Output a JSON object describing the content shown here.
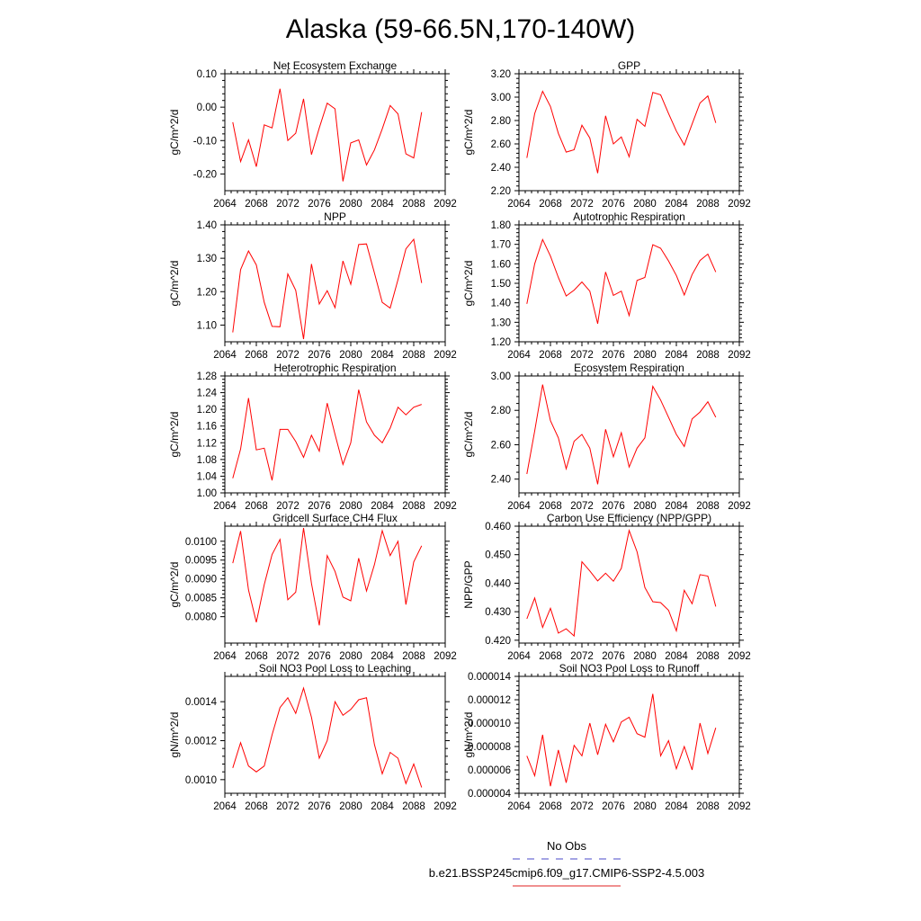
{
  "page": {
    "title": "Alaska (59-66.5N,170-140W)"
  },
  "legend": {
    "items": [
      {
        "label": "No Obs",
        "color": "#4a4ac8",
        "dash": true
      },
      {
        "label": "b.e21.BSSP245cmip6.f09_g17.CMIP6-SSP2-4.5.003",
        "color": "#e02020",
        "dash": false
      }
    ]
  },
  "colors": {
    "series": "#ff0000",
    "axis": "#000000"
  },
  "chart_data": [
    {
      "type": "line",
      "title": "Net Ecosystem Exchange",
      "ylabel": "gC/m^2/d",
      "xlim": [
        2064,
        2092
      ],
      "xticks": [
        2064,
        2068,
        2072,
        2076,
        2080,
        2084,
        2088,
        2092
      ],
      "ylim": [
        -0.25,
        0.1
      ],
      "yticks": [
        0.1,
        0.0,
        -0.1,
        -0.2
      ],
      "yticklabels": [
        "0.10",
        "0.00",
        "-0.10",
        "-0.20"
      ],
      "x": [
        2065,
        2066,
        2067,
        2068,
        2069,
        2070,
        2071,
        2072,
        2073,
        2074,
        2075,
        2076,
        2077,
        2078,
        2079,
        2080,
        2081,
        2082,
        2083,
        2084,
        2085,
        2086,
        2087,
        2088,
        2089
      ],
      "values": [
        -0.045,
        -0.163,
        -0.098,
        -0.178,
        -0.053,
        -0.062,
        0.055,
        -0.1,
        -0.078,
        0.025,
        -0.142,
        -0.062,
        0.012,
        -0.005,
        -0.222,
        -0.107,
        -0.098,
        -0.173,
        -0.128,
        -0.065,
        0.005,
        -0.02,
        -0.14,
        -0.152,
        -0.015
      ]
    },
    {
      "type": "line",
      "title": "GPP",
      "ylabel": "gC/m^2/d",
      "xlim": [
        2064,
        2092
      ],
      "xticks": [
        2064,
        2068,
        2072,
        2076,
        2080,
        2084,
        2088,
        2092
      ],
      "ylim": [
        2.2,
        3.2
      ],
      "yticks": [
        3.2,
        3.0,
        2.8,
        2.6,
        2.4,
        2.2
      ],
      "yticklabels": [
        "3.20",
        "3.00",
        "2.80",
        "2.60",
        "2.40",
        "2.20"
      ],
      "x": [
        2065,
        2066,
        2067,
        2068,
        2069,
        2070,
        2071,
        2072,
        2073,
        2074,
        2075,
        2076,
        2077,
        2078,
        2079,
        2080,
        2081,
        2082,
        2083,
        2084,
        2085,
        2086,
        2087,
        2088,
        2089
      ],
      "values": [
        2.48,
        2.86,
        3.05,
        2.92,
        2.69,
        2.53,
        2.55,
        2.76,
        2.65,
        2.35,
        2.84,
        2.6,
        2.66,
        2.49,
        2.81,
        2.75,
        3.04,
        3.02,
        2.86,
        2.71,
        2.59,
        2.77,
        2.95,
        3.01,
        2.78
      ]
    },
    {
      "type": "line",
      "title": "NPP",
      "ylabel": "gC/m^2/d",
      "xlim": [
        2064,
        2092
      ],
      "xticks": [
        2064,
        2068,
        2072,
        2076,
        2080,
        2084,
        2088,
        2092
      ],
      "ylim": [
        1.05,
        1.4
      ],
      "yticks": [
        1.4,
        1.3,
        1.2,
        1.1
      ],
      "yticklabels": [
        "1.40",
        "1.30",
        "1.20",
        "1.10"
      ],
      "x": [
        2065,
        2066,
        2067,
        2068,
        2069,
        2070,
        2071,
        2072,
        2073,
        2074,
        2075,
        2076,
        2077,
        2078,
        2079,
        2080,
        2081,
        2082,
        2083,
        2084,
        2085,
        2086,
        2087,
        2088,
        2089
      ],
      "values": [
        1.078,
        1.266,
        1.322,
        1.28,
        1.168,
        1.096,
        1.095,
        1.253,
        1.204,
        1.058,
        1.283,
        1.163,
        1.203,
        1.152,
        1.292,
        1.222,
        1.341,
        1.343,
        1.256,
        1.168,
        1.151,
        1.236,
        1.328,
        1.357,
        1.226
      ]
    },
    {
      "type": "line",
      "title": "Autotrophic Respiration",
      "ylabel": "gC/m^2/d",
      "xlim": [
        2064,
        2092
      ],
      "xticks": [
        2064,
        2068,
        2072,
        2076,
        2080,
        2084,
        2088,
        2092
      ],
      "ylim": [
        1.2,
        1.8
      ],
      "yticks": [
        1.8,
        1.7,
        1.6,
        1.5,
        1.4,
        1.3,
        1.2
      ],
      "yticklabels": [
        "1.80",
        "1.70",
        "1.60",
        "1.50",
        "1.40",
        "1.30",
        "1.20"
      ],
      "x": [
        2065,
        2066,
        2067,
        2068,
        2069,
        2070,
        2071,
        2072,
        2073,
        2074,
        2075,
        2076,
        2077,
        2078,
        2079,
        2080,
        2081,
        2082,
        2083,
        2084,
        2085,
        2086,
        2087,
        2088,
        2089
      ],
      "values": [
        1.395,
        1.6,
        1.725,
        1.64,
        1.53,
        1.435,
        1.465,
        1.507,
        1.46,
        1.293,
        1.558,
        1.438,
        1.46,
        1.335,
        1.515,
        1.53,
        1.698,
        1.68,
        1.615,
        1.54,
        1.44,
        1.545,
        1.617,
        1.65,
        1.558
      ]
    },
    {
      "type": "line",
      "title": "Heterotrophic Respiration",
      "ylabel": "gC/m^2/d",
      "xlim": [
        2064,
        2092
      ],
      "xticks": [
        2064,
        2068,
        2072,
        2076,
        2080,
        2084,
        2088,
        2092
      ],
      "ylim": [
        1.0,
        1.28
      ],
      "yticks": [
        1.28,
        1.24,
        1.2,
        1.16,
        1.12,
        1.08,
        1.04,
        1.0
      ],
      "yticklabels": [
        "1.28",
        "1.24",
        "1.20",
        "1.16",
        "1.12",
        "1.08",
        "1.04",
        "1.00"
      ],
      "x": [
        2065,
        2066,
        2067,
        2068,
        2069,
        2070,
        2071,
        2072,
        2073,
        2074,
        2075,
        2076,
        2077,
        2078,
        2079,
        2080,
        2081,
        2082,
        2083,
        2084,
        2085,
        2086,
        2087,
        2088,
        2089
      ],
      "values": [
        1.035,
        1.105,
        1.227,
        1.103,
        1.107,
        1.03,
        1.152,
        1.152,
        1.123,
        1.085,
        1.138,
        1.1,
        1.215,
        1.14,
        1.068,
        1.12,
        1.247,
        1.17,
        1.138,
        1.12,
        1.155,
        1.205,
        1.187,
        1.205,
        1.212
      ]
    },
    {
      "type": "line",
      "title": "Ecosystem Respiration",
      "ylabel": "gC/m^2/d",
      "xlim": [
        2064,
        2092
      ],
      "xticks": [
        2064,
        2068,
        2072,
        2076,
        2080,
        2084,
        2088,
        2092
      ],
      "ylim": [
        2.32,
        3.0
      ],
      "yticks": [
        3.0,
        2.8,
        2.6,
        2.4
      ],
      "yticklabels": [
        "3.00",
        "2.80",
        "2.60",
        "2.40"
      ],
      "x": [
        2065,
        2066,
        2067,
        2068,
        2069,
        2070,
        2071,
        2072,
        2073,
        2074,
        2075,
        2076,
        2077,
        2078,
        2079,
        2080,
        2081,
        2082,
        2083,
        2084,
        2085,
        2086,
        2087,
        2088,
        2089
      ],
      "values": [
        2.43,
        2.68,
        2.95,
        2.74,
        2.64,
        2.46,
        2.62,
        2.66,
        2.58,
        2.37,
        2.69,
        2.53,
        2.67,
        2.47,
        2.58,
        2.64,
        2.94,
        2.86,
        2.76,
        2.66,
        2.59,
        2.75,
        2.79,
        2.85,
        2.76
      ]
    },
    {
      "type": "line",
      "title": "Gridcell Surface CH4 Flux",
      "ylabel": "gC/m^2/d",
      "xlim": [
        2064,
        2092
      ],
      "xticks": [
        2064,
        2068,
        2072,
        2076,
        2080,
        2084,
        2088,
        2092
      ],
      "ylim": [
        0.0073,
        0.0104
      ],
      "yticks": [
        0.01,
        0.0095,
        0.009,
        0.0085,
        0.008
      ],
      "yticklabels": [
        "0.0100",
        "0.0095",
        "0.0090",
        "0.0085",
        "0.0080"
      ],
      "x": [
        2065,
        2066,
        2067,
        2068,
        2069,
        2070,
        2071,
        2072,
        2073,
        2074,
        2075,
        2076,
        2077,
        2078,
        2079,
        2080,
        2081,
        2082,
        2083,
        2084,
        2085,
        2086,
        2087,
        2088,
        2089
      ],
      "values": [
        0.00942,
        0.01027,
        0.00871,
        0.00785,
        0.00885,
        0.00965,
        0.01005,
        0.00845,
        0.00865,
        0.01035,
        0.00888,
        0.00777,
        0.00962,
        0.0092,
        0.00852,
        0.00842,
        0.00955,
        0.00868,
        0.00938,
        0.01028,
        0.00962,
        0.01,
        0.00832,
        0.00945,
        0.00988
      ]
    },
    {
      "type": "line",
      "title": "Carbon Use Efficiency (NPP/GPP)",
      "ylabel": "NPP/GPP",
      "xlim": [
        2064,
        2092
      ],
      "xticks": [
        2064,
        2068,
        2072,
        2076,
        2080,
        2084,
        2088,
        2092
      ],
      "ylim": [
        0.419,
        0.46
      ],
      "yticks": [
        0.46,
        0.45,
        0.44,
        0.43,
        0.42
      ],
      "yticklabels": [
        "0.460",
        "0.450",
        "0.440",
        "0.430",
        "0.420"
      ],
      "x": [
        2065,
        2066,
        2067,
        2068,
        2069,
        2070,
        2071,
        2072,
        2073,
        2074,
        2075,
        2076,
        2077,
        2078,
        2079,
        2080,
        2081,
        2082,
        2083,
        2084,
        2085,
        2086,
        2087,
        2088,
        2089
      ],
      "values": [
        0.4275,
        0.4348,
        0.4245,
        0.4312,
        0.4225,
        0.424,
        0.4215,
        0.4475,
        0.4443,
        0.4408,
        0.4435,
        0.4407,
        0.4452,
        0.4585,
        0.451,
        0.4385,
        0.4335,
        0.4332,
        0.4305,
        0.4233,
        0.4375,
        0.4328,
        0.443,
        0.4425,
        0.4318
      ]
    },
    {
      "type": "line",
      "title": "Soil NO3 Pool Loss to Leaching",
      "ylabel": "gN/m^2/d",
      "xlim": [
        2064,
        2092
      ],
      "xticks": [
        2064,
        2068,
        2072,
        2076,
        2080,
        2084,
        2088,
        2092
      ],
      "ylim": [
        0.00093,
        0.00153
      ],
      "yticks": [
        0.0014,
        0.0012,
        0.001
      ],
      "yticklabels": [
        "0.0014",
        "0.0012",
        "0.0010"
      ],
      "x": [
        2065,
        2066,
        2067,
        2068,
        2069,
        2070,
        2071,
        2072,
        2073,
        2074,
        2075,
        2076,
        2077,
        2078,
        2079,
        2080,
        2081,
        2082,
        2083,
        2084,
        2085,
        2086,
        2087,
        2088,
        2089
      ],
      "values": [
        0.00106,
        0.00119,
        0.00107,
        0.00104,
        0.00107,
        0.00123,
        0.00137,
        0.00142,
        0.00134,
        0.00147,
        0.00132,
        0.00111,
        0.0012,
        0.0014,
        0.00133,
        0.00136,
        0.00141,
        0.00142,
        0.00118,
        0.00103,
        0.00114,
        0.00111,
        0.00098,
        0.00108,
        0.00096
      ]
    },
    {
      "type": "line",
      "title": "Soil NO3 Pool Loss to Runoff",
      "ylabel": "gN/m^2/d",
      "xlim": [
        2064,
        2092
      ],
      "xticks": [
        2064,
        2068,
        2072,
        2076,
        2080,
        2084,
        2088,
        2092
      ],
      "ylim": [
        4e-06,
        1.4e-05
      ],
      "yticks": [
        1.4e-05,
        1.2e-05,
        1e-05,
        8e-06,
        6e-06,
        4e-06
      ],
      "yticklabels": [
        "0.000014",
        "0.000012",
        "0.000010",
        "0.000008",
        "0.000006",
        "0.000004"
      ],
      "x": [
        2065,
        2066,
        2067,
        2068,
        2069,
        2070,
        2071,
        2072,
        2073,
        2074,
        2075,
        2076,
        2077,
        2078,
        2079,
        2080,
        2081,
        2082,
        2083,
        2084,
        2085,
        2086,
        2087,
        2088,
        2089
      ],
      "values": [
        7.2e-06,
        5.5e-06,
        9e-06,
        4.6e-06,
        7.7e-06,
        4.9e-06,
        8.1e-06,
        7.2e-06,
        1e-05,
        7.3e-06,
        9.9e-06,
        8.4e-06,
        1.01e-05,
        1.05e-05,
        9.1e-06,
        8.8e-06,
        1.25e-05,
        7.2e-06,
        8.5e-06,
        6.1e-06,
        8e-06,
        6e-06,
        1e-05,
        7.4e-06,
        9.6e-06
      ]
    }
  ]
}
